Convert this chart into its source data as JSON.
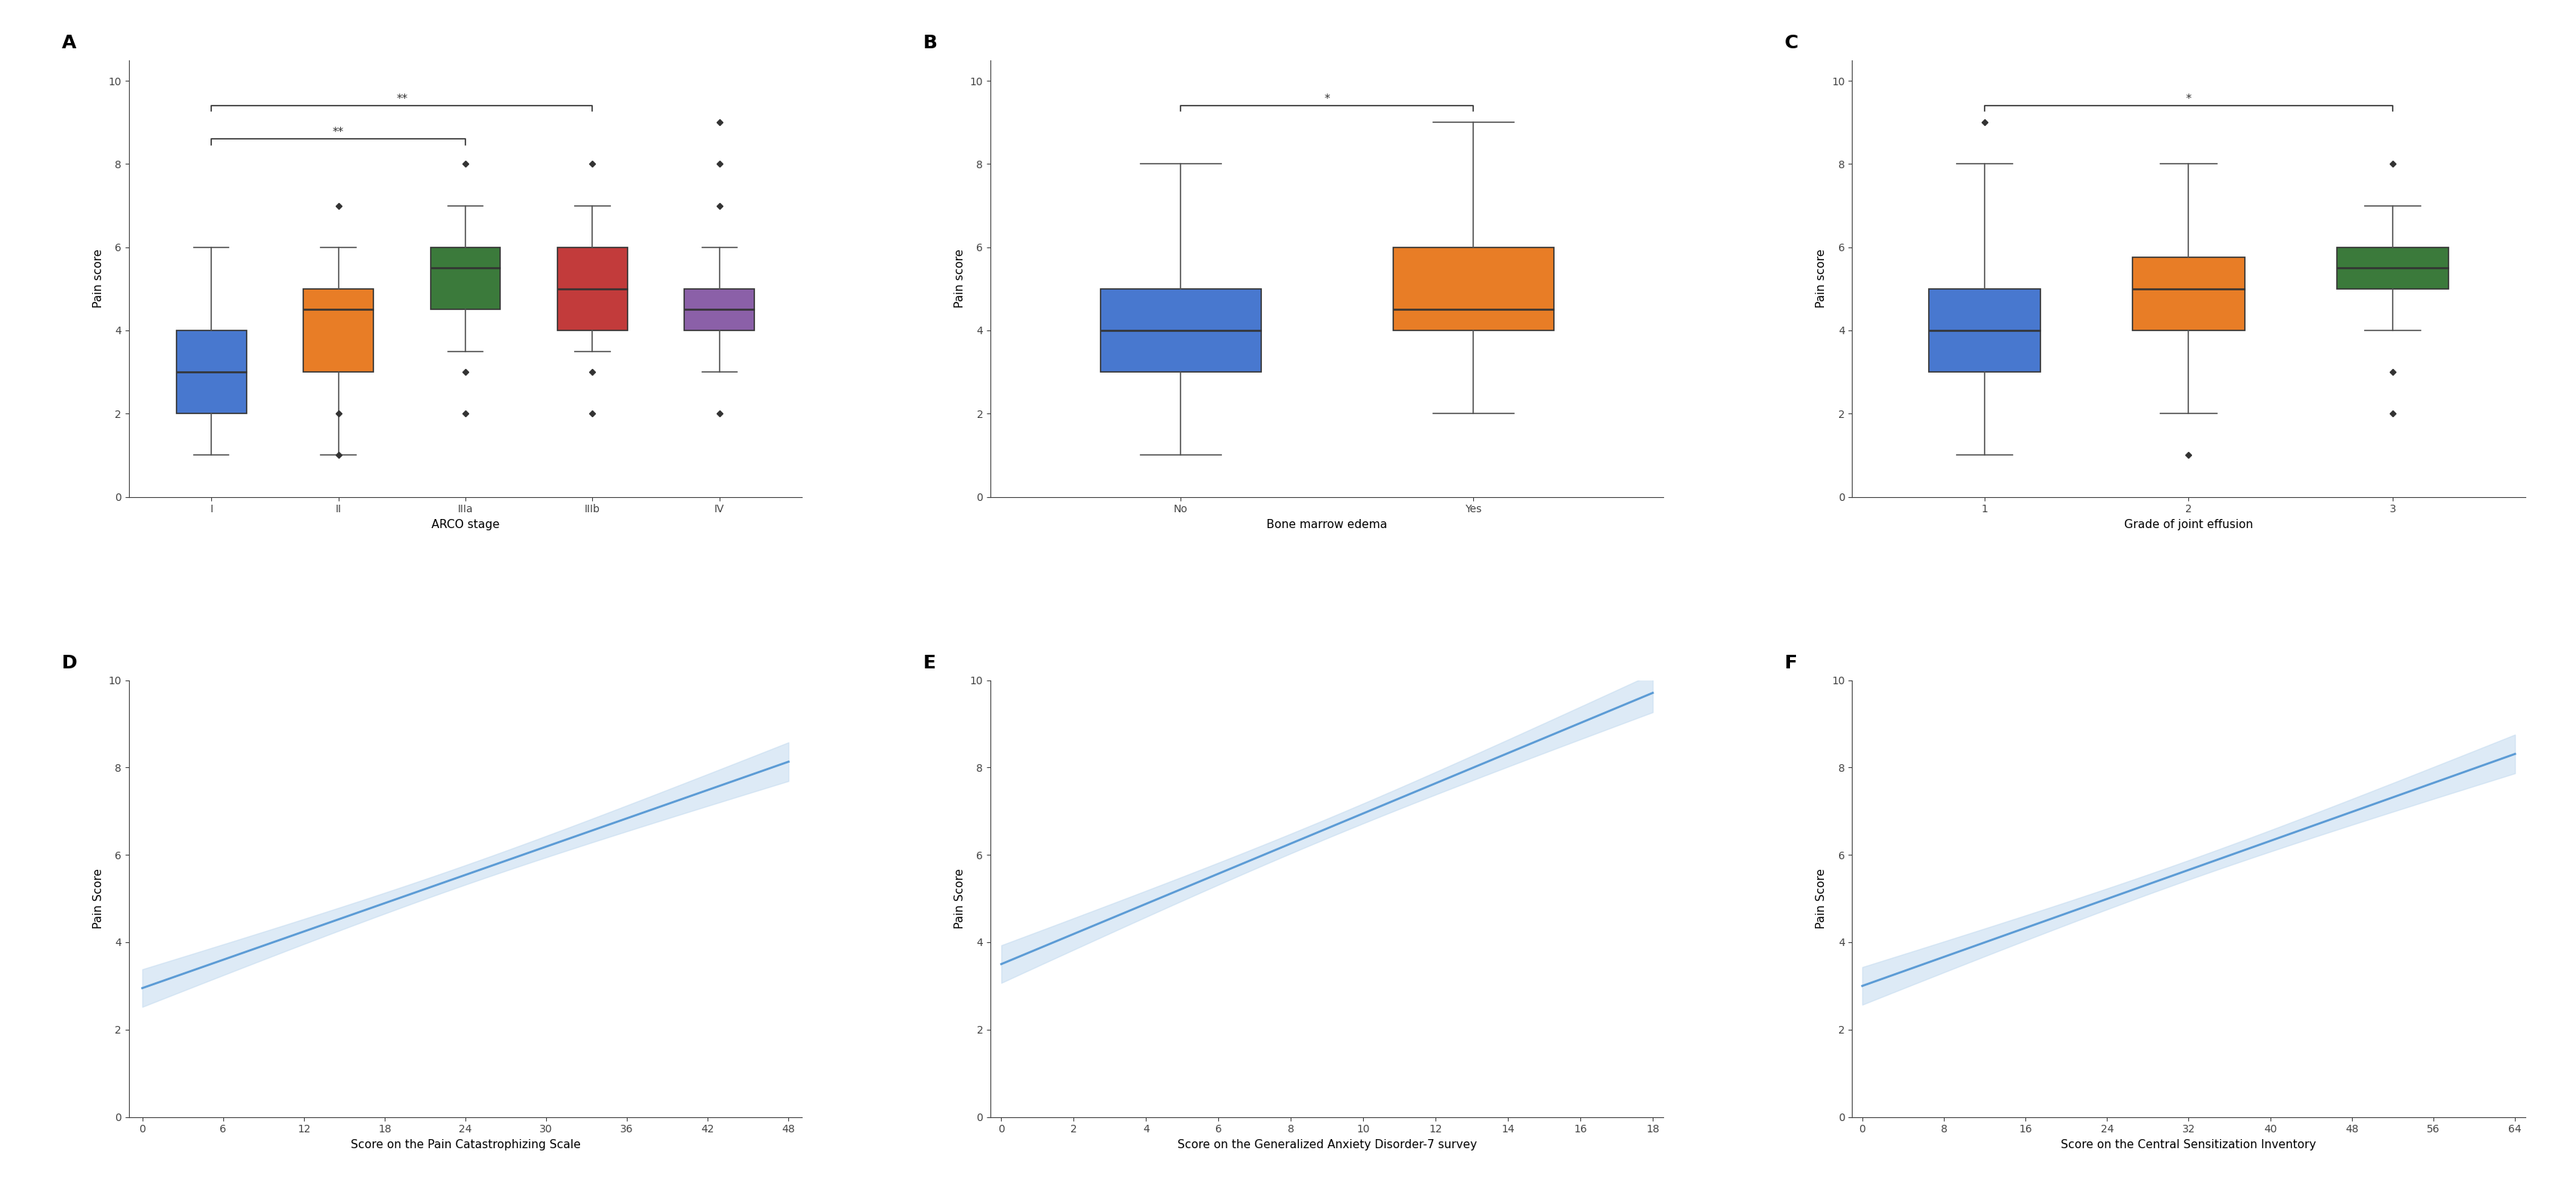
{
  "panel_labels": [
    "A",
    "B",
    "C",
    "D",
    "E",
    "F"
  ],
  "panel_label_fontsize": 18,
  "panel_label_fontweight": "bold",
  "boxplot_A": {
    "categories": [
      "I",
      "II",
      "IIIa",
      "IIIb",
      "IV"
    ],
    "colors": [
      "#4878CF",
      "#E87D26",
      "#3B7A3B",
      "#C23B3B",
      "#8B60A8"
    ],
    "medians": [
      3.0,
      4.5,
      5.5,
      5.0,
      4.5
    ],
    "q1": [
      2.0,
      3.0,
      4.5,
      4.0,
      4.0
    ],
    "q3": [
      4.0,
      5.0,
      6.0,
      6.0,
      5.0
    ],
    "whislo": [
      1.0,
      1.0,
      3.5,
      3.5,
      3.0
    ],
    "whishi": [
      6.0,
      6.0,
      7.0,
      7.0,
      6.0
    ],
    "fliers": [
      [],
      [
        2.0,
        7.0,
        1.0
      ],
      [
        2.0,
        3.0,
        8.0
      ],
      [
        2.0,
        3.0,
        8.0
      ],
      [
        2.0,
        8.0,
        7.0,
        9.0
      ]
    ],
    "xlabel": "ARCO stage",
    "ylabel": "Pain score",
    "ylim": [
      0,
      10.5
    ],
    "yticks": [
      0,
      2,
      4,
      6,
      8,
      10
    ],
    "significance": [
      {
        "from": 0,
        "to": 2,
        "y": 8.6,
        "label": "**"
      },
      {
        "from": 0,
        "to": 3,
        "y": 9.4,
        "label": "**"
      }
    ]
  },
  "boxplot_B": {
    "categories": [
      "No",
      "Yes"
    ],
    "colors": [
      "#4878CF",
      "#E87D26"
    ],
    "medians": [
      4.0,
      4.5
    ],
    "q1": [
      3.0,
      4.0
    ],
    "q3": [
      5.0,
      6.0
    ],
    "whislo": [
      1.0,
      2.0
    ],
    "whishi": [
      8.0,
      9.0
    ],
    "fliers": [
      [],
      []
    ],
    "xlabel": "Bone marrow edema",
    "ylabel": "Pain score",
    "ylim": [
      0,
      10.5
    ],
    "yticks": [
      0,
      2,
      4,
      6,
      8,
      10
    ],
    "significance": [
      {
        "from": 0,
        "to": 1,
        "y": 9.4,
        "label": "*"
      }
    ]
  },
  "boxplot_C": {
    "categories": [
      "1",
      "2",
      "3"
    ],
    "colors": [
      "#4878CF",
      "#E87D26",
      "#3B7A3B"
    ],
    "medians": [
      4.0,
      5.0,
      5.5
    ],
    "q1": [
      3.0,
      4.0,
      5.0
    ],
    "q3": [
      5.0,
      5.75,
      6.0
    ],
    "whislo": [
      1.0,
      2.0,
      4.0
    ],
    "whishi": [
      8.0,
      8.0,
      7.0
    ],
    "fliers": [
      [
        9.0
      ],
      [
        1.0
      ],
      [
        3.0,
        2.0,
        8.0
      ]
    ],
    "xlabel": "Grade of joint effusion",
    "ylabel": "Pain score",
    "ylim": [
      0,
      10.5
    ],
    "yticks": [
      0,
      2,
      4,
      6,
      8,
      10
    ],
    "significance": [
      {
        "from": 0,
        "to": 2,
        "y": 9.4,
        "label": "*"
      }
    ]
  },
  "regplot_D": {
    "xlabel": "Score on the Pain Catastrophizing Scale",
    "ylabel": "Pain Score",
    "xlim": [
      -1,
      49
    ],
    "ylim": [
      0,
      10
    ],
    "xticks": [
      0,
      6,
      12,
      18,
      24,
      30,
      36,
      42,
      48
    ],
    "yticks": [
      0,
      2,
      4,
      6,
      8,
      10
    ],
    "slope": 0.108,
    "intercept": 2.95,
    "x_start": 0,
    "x_end": 48,
    "n_samples": 250,
    "residual_std": 1.8,
    "line_color": "#5B9BD5",
    "ci_color": "#BDD7EE",
    "ci_alpha": 0.5
  },
  "regplot_E": {
    "xlabel": "Score on the Generalized Anxiety Disorder-7 survey",
    "ylabel": "Pain Score",
    "xlim": [
      -0.3,
      18.3
    ],
    "ylim": [
      0,
      10
    ],
    "xticks": [
      0,
      2,
      4,
      6,
      8,
      10,
      12,
      14,
      16,
      18
    ],
    "yticks": [
      0,
      2,
      4,
      6,
      8,
      10
    ],
    "slope": 0.345,
    "intercept": 3.5,
    "x_start": 0,
    "x_end": 18,
    "n_samples": 250,
    "residual_std": 1.8,
    "line_color": "#5B9BD5",
    "ci_color": "#BDD7EE",
    "ci_alpha": 0.5
  },
  "regplot_F": {
    "xlabel": "Score on the Central Sensitization Inventory",
    "ylabel": "Pain Score",
    "xlim": [
      -1,
      65
    ],
    "ylim": [
      0,
      10
    ],
    "xticks": [
      0,
      8,
      16,
      24,
      32,
      40,
      48,
      56,
      64
    ],
    "yticks": [
      0,
      2,
      4,
      6,
      8,
      10
    ],
    "slope": 0.083,
    "intercept": 3.0,
    "x_start": 0,
    "x_end": 64,
    "n_samples": 250,
    "residual_std": 1.8,
    "line_color": "#5B9BD5",
    "ci_color": "#BDD7EE",
    "ci_alpha": 0.5
  },
  "figure_bg": "#FFFFFF",
  "axes_bg": "#FFFFFF",
  "spine_color": "#444444",
  "tick_color": "#444444",
  "label_fontsize": 11,
  "tick_fontsize": 10,
  "box_width": 0.55,
  "flier_marker": "D",
  "flier_size": 4
}
